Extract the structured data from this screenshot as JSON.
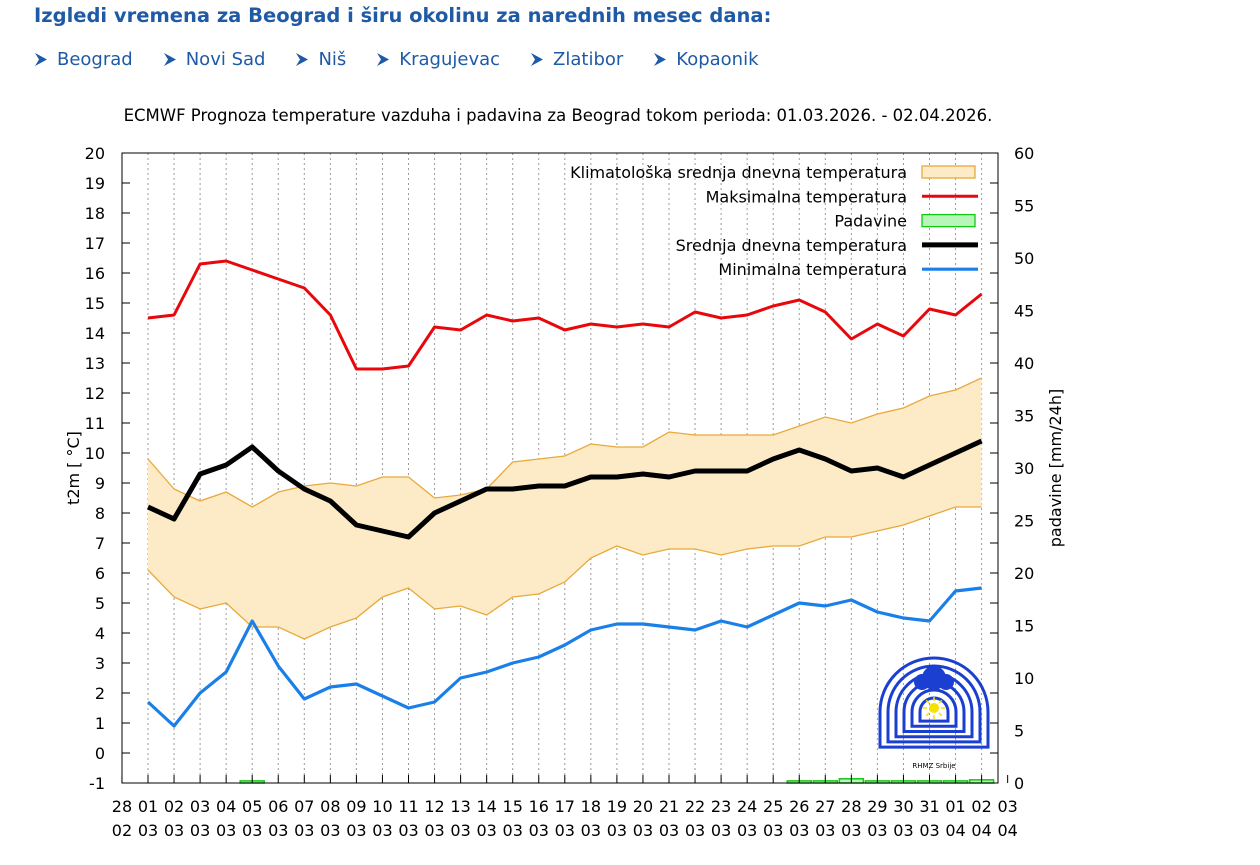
{
  "page": {
    "heading": "Izgledi vremena za Beograd i širu okolinu za narednih mesec dana:",
    "cities": [
      "Beograd",
      "Novi Sad",
      "Niš",
      "Kragujevac",
      "Zlatibor",
      "Kopaonik"
    ],
    "colors": {
      "heading": "#1f5aa6",
      "link": "#1f5aa6"
    }
  },
  "chart_data": {
    "type": "line",
    "title": "ECMWF Prognoza temperature vazduha i padavina za Beograd tokom perioda: 01.03.2026. - 02.04.2026.",
    "ylabel": "t2m [ °C]",
    "y2label": "padavine [mm/24h]",
    "ylim": [
      -1,
      20
    ],
    "y2lim": [
      0,
      60
    ],
    "grid": true,
    "legend_position": "top-right",
    "categories": [
      "28 02",
      "01 03",
      "02 03",
      "03 03",
      "04 03",
      "05 03",
      "06 03",
      "07 03",
      "08 03",
      "09 03",
      "10 03",
      "11 03",
      "12 03",
      "13 03",
      "14 03",
      "15 03",
      "16 03",
      "17 03",
      "18 03",
      "19 03",
      "20 03",
      "21 03",
      "22 03",
      "23 03",
      "24 03",
      "25 03",
      "26 03",
      "27 03",
      "28 03",
      "29 03",
      "30 03",
      "31 03",
      "01 04",
      "02 04",
      "03 04"
    ],
    "series": [
      {
        "name": "Klimatološka srednja dnevna temperatura",
        "type": "band",
        "color": "#e8a93a",
        "fill": "#fdebc8",
        "upper": [
          null,
          9.8,
          8.8,
          8.4,
          8.7,
          8.2,
          8.7,
          8.9,
          9.0,
          8.9,
          9.2,
          9.2,
          8.5,
          8.6,
          8.8,
          9.7,
          9.8,
          9.9,
          10.3,
          10.2,
          10.2,
          10.7,
          10.6,
          10.6,
          10.6,
          10.6,
          10.9,
          11.2,
          11.0,
          11.3,
          11.5,
          11.9,
          12.1,
          12.5,
          null
        ],
        "lower": [
          null,
          6.1,
          5.2,
          4.8,
          5.0,
          4.2,
          4.2,
          3.8,
          4.2,
          4.5,
          5.2,
          5.5,
          4.8,
          4.9,
          4.6,
          5.2,
          5.3,
          5.7,
          6.5,
          6.9,
          6.6,
          6.8,
          6.8,
          6.6,
          6.8,
          6.9,
          6.9,
          7.2,
          7.2,
          7.4,
          7.6,
          7.9,
          8.2,
          8.2,
          null
        ]
      },
      {
        "name": "Maksimalna temperatura",
        "type": "line",
        "color": "#e8070b",
        "values": [
          null,
          14.5,
          14.6,
          16.3,
          16.4,
          16.1,
          15.8,
          15.5,
          14.6,
          12.8,
          12.8,
          12.9,
          14.2,
          14.1,
          14.6,
          14.4,
          14.5,
          14.1,
          14.3,
          14.2,
          14.3,
          14.2,
          14.7,
          14.5,
          14.6,
          14.9,
          15.1,
          14.7,
          13.8,
          14.3,
          13.9,
          14.8,
          14.6,
          15.3,
          null
        ]
      },
      {
        "name": "Padavine",
        "type": "bar",
        "axis": "y2",
        "color": "#14c814",
        "fill": "#b8f5b8",
        "values": [
          null,
          0,
          0,
          0,
          0,
          0.2,
          0,
          0,
          0,
          0,
          0,
          0,
          0,
          0,
          0,
          0,
          0,
          0,
          0,
          0,
          0,
          0,
          0,
          0,
          0,
          0,
          0.2,
          0.2,
          0.4,
          0.2,
          0.2,
          0.2,
          0.2,
          0.3,
          null
        ]
      },
      {
        "name": "Srednja dnevna temperatura",
        "type": "line",
        "color": "#000000",
        "values": [
          null,
          8.2,
          7.8,
          9.3,
          9.6,
          10.2,
          9.4,
          8.8,
          8.4,
          7.6,
          7.4,
          7.2,
          8.0,
          8.4,
          8.8,
          8.8,
          8.9,
          8.9,
          9.2,
          9.2,
          9.3,
          9.2,
          9.4,
          9.4,
          9.4,
          9.8,
          10.1,
          9.8,
          9.4,
          9.5,
          9.2,
          9.6,
          10.0,
          10.4,
          null
        ]
      },
      {
        "name": "Minimalna temperatura",
        "type": "line",
        "color": "#1a7fe8",
        "values": [
          null,
          1.7,
          0.9,
          2.0,
          2.7,
          4.4,
          2.9,
          1.8,
          2.2,
          2.3,
          1.9,
          1.5,
          1.7,
          2.5,
          2.7,
          3.0,
          3.2,
          3.6,
          4.1,
          4.3,
          4.3,
          4.2,
          4.1,
          4.4,
          4.2,
          4.6,
          5.0,
          4.9,
          5.1,
          4.7,
          4.5,
          4.4,
          5.4,
          5.5,
          null
        ]
      }
    ],
    "watermark": {
      "label": "RHMZ Srbije",
      "icon": "rhmz-logo-icon"
    }
  }
}
